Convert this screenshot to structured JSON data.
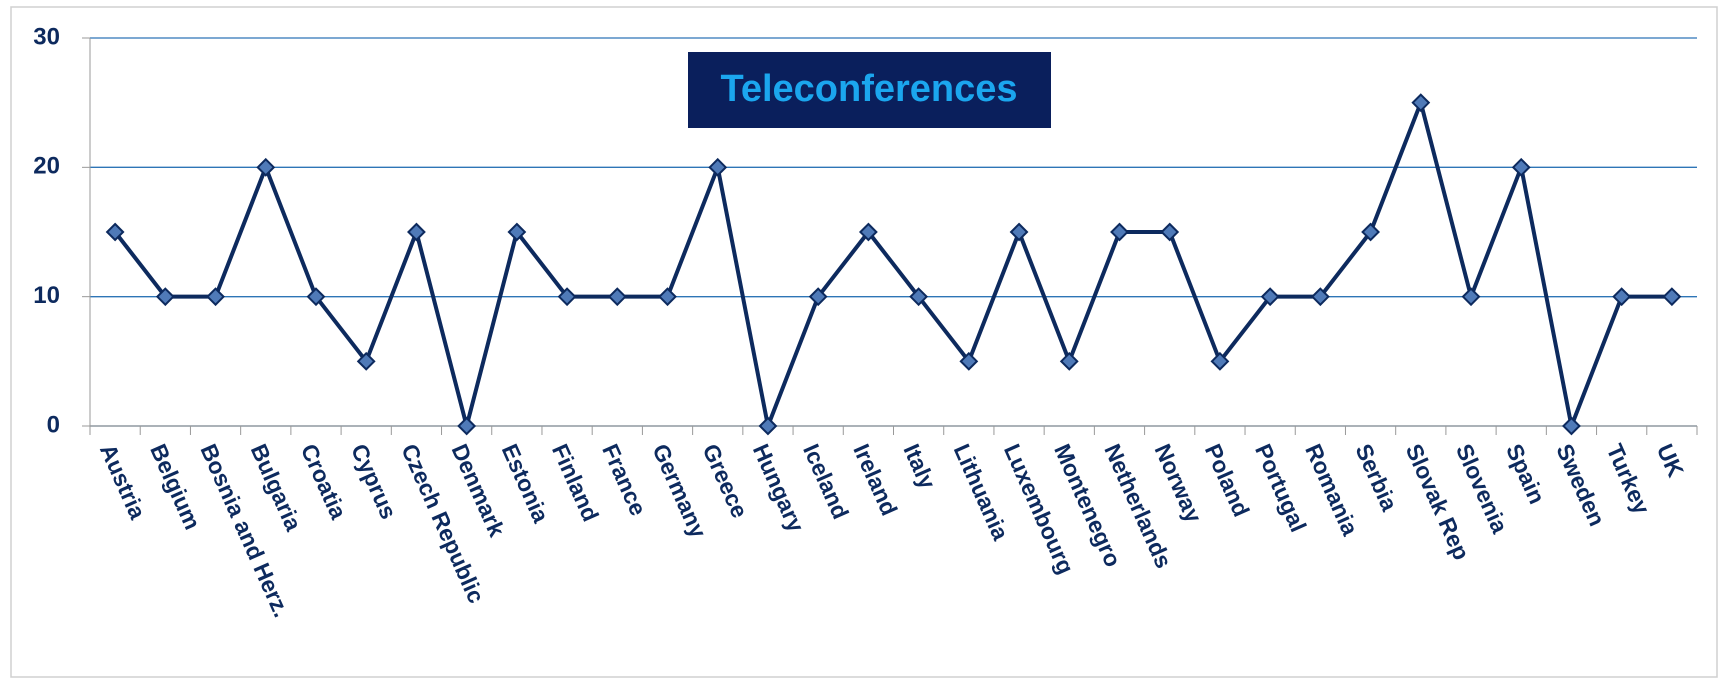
{
  "chart_data": {
    "type": "line",
    "title": "Teleconferences",
    "categories": [
      "Austria",
      "Belgium",
      "Bosnia and Herz.",
      "Bulgaria",
      "Croatia",
      "Cyprus",
      "Czech Republic",
      "Denmark",
      "Estonia",
      "Finland",
      "France",
      "Germany",
      "Greece",
      "Hungary",
      "Iceland",
      "Ireland",
      "Italy",
      "Lithuania",
      "Luxembourg",
      "Montenegro",
      "Netherlands",
      "Norway",
      "Poland",
      "Portugal",
      "Romania",
      "Serbia",
      "Slovak Rep",
      "Slovenia",
      "Spain",
      "Sweden",
      "Turkey",
      "UK"
    ],
    "values": [
      15,
      10,
      10,
      20,
      10,
      5,
      15,
      0,
      15,
      10,
      10,
      10,
      20,
      0,
      10,
      15,
      10,
      5,
      15,
      5,
      15,
      15,
      5,
      10,
      10,
      15,
      25,
      10,
      20,
      0,
      10,
      10
    ],
    "color": "#0d2a5e",
    "marker_color": "#4f7ab8",
    "ylim": [
      0,
      30
    ],
    "yticks": [
      0,
      10,
      20,
      30
    ],
    "grid": true
  }
}
